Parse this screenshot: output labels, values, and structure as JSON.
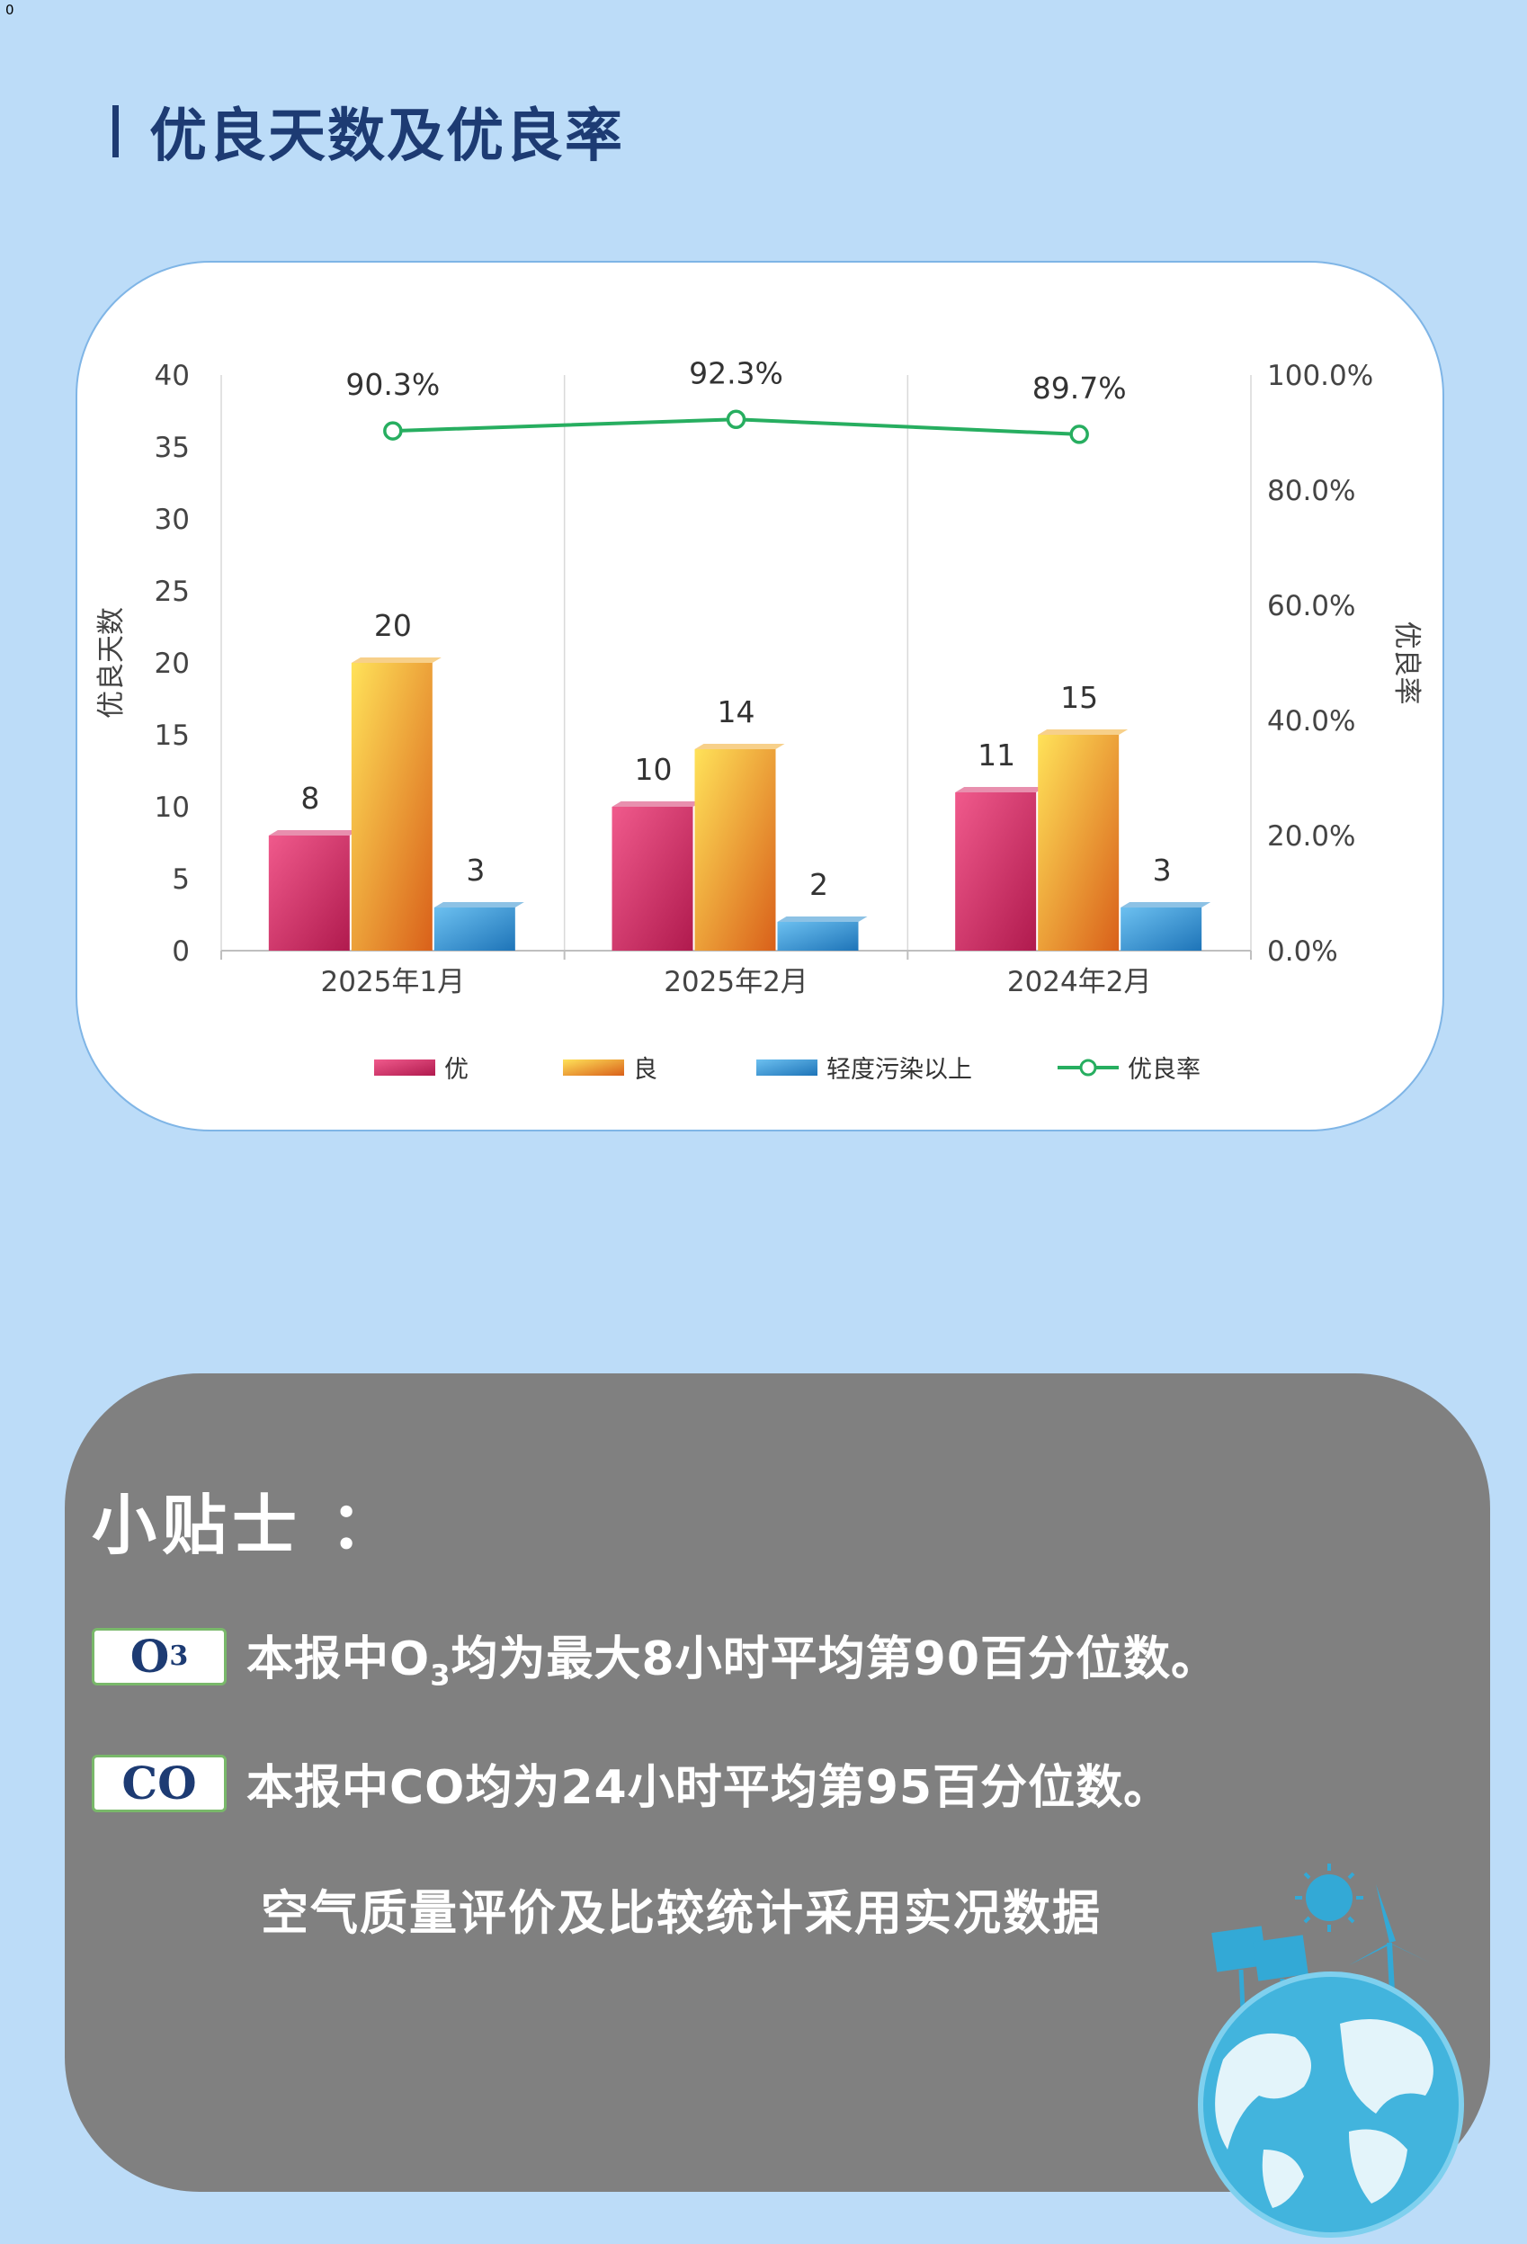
{
  "corner_mark": "0",
  "section_title": "优良天数及优良率",
  "chart_data": {
    "type": "bar",
    "categories": [
      "2025年1月",
      "2025年2月",
      "2024年2月"
    ],
    "series": [
      {
        "name": "优",
        "values": [
          8,
          10,
          11
        ],
        "color": "#d6336c"
      },
      {
        "name": "良",
        "values": [
          20,
          14,
          15
        ],
        "color": "#f0a92a"
      },
      {
        "name": "轻度污染以上",
        "values": [
          3,
          2,
          3
        ],
        "color": "#2f8fd0"
      }
    ],
    "line_series": {
      "name": "优良率",
      "values": [
        90.3,
        92.3,
        89.7
      ],
      "labels": [
        "90.3%",
        "92.3%",
        "89.7%"
      ],
      "color": "#27ae60"
    },
    "ylabel": "优良天数",
    "ylabel_right": "优良率",
    "ylim": [
      0,
      40
    ],
    "yticks": [
      "0",
      "5",
      "10",
      "15",
      "20",
      "25",
      "30",
      "35",
      "40"
    ],
    "ylim_right": [
      0,
      100
    ],
    "yticks_right": [
      "0.0%",
      "20.0%",
      "40.0%",
      "60.0%",
      "80.0%",
      "100.0%"
    ],
    "grid": true,
    "legend_position": "bottom"
  },
  "tips": {
    "title": "小贴士 ：",
    "items": [
      {
        "badge": "O",
        "badge_sub": "3",
        "text_pre": "本报中O",
        "text_sub": "3",
        "text_post": "均为最大8小时平均第90百分位数。"
      },
      {
        "badge": "CO",
        "badge_sub": "",
        "text_pre": "本报中CO均为24小时平均第95百分位数。",
        "text_sub": "",
        "text_post": ""
      }
    ],
    "note": "空气质量评价及比较统计采用实况数据"
  }
}
